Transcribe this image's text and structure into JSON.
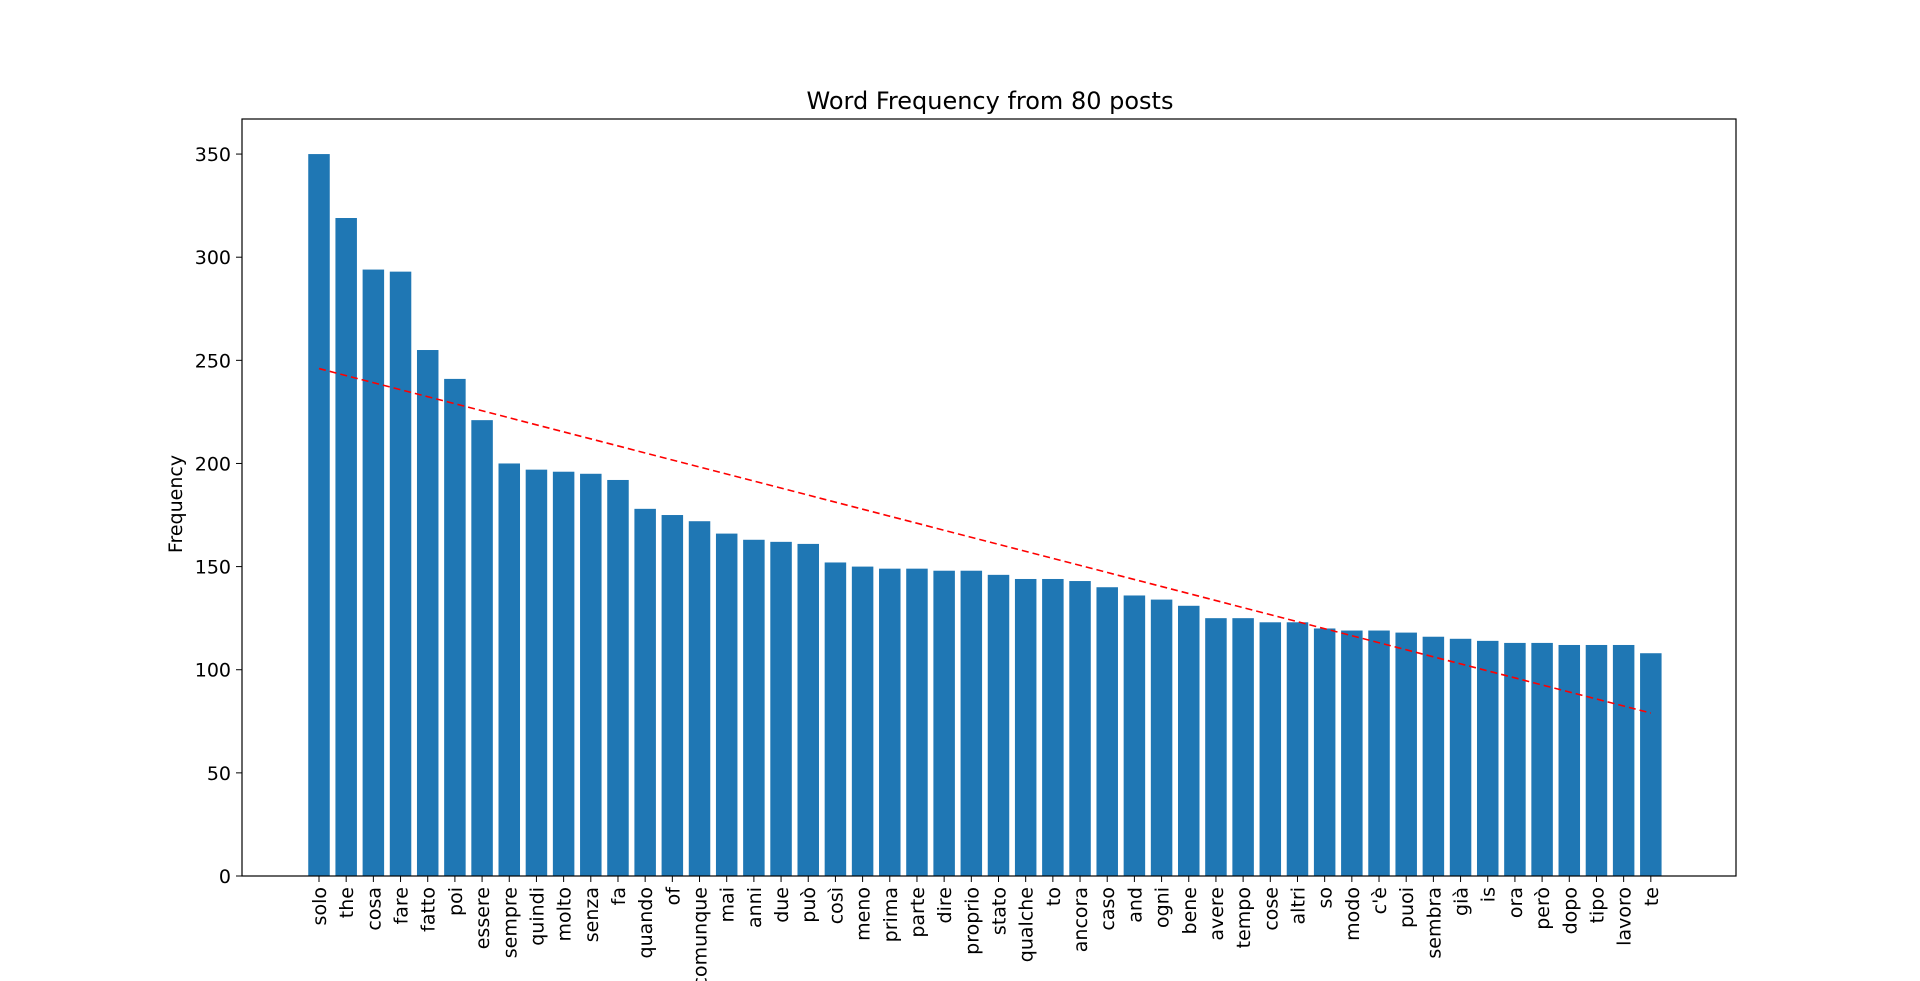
{
  "chart_data": {
    "type": "bar",
    "title": "Word Frequency from 80 posts",
    "xlabel": "",
    "ylabel": "Frequency",
    "ylim": [
      0,
      367
    ],
    "yticks": [
      0,
      50,
      100,
      150,
      200,
      250,
      300,
      350
    ],
    "grid": false,
    "bar_color": "#1f77b4",
    "trend_color": "#ff0000",
    "categories": [
      "solo",
      "the",
      "cosa",
      "fare",
      "fatto",
      "poi",
      "essere",
      "sempre",
      "quindi",
      "molto",
      "senza",
      "fa",
      "quando",
      "of",
      "comunque",
      "mai",
      "anni",
      "due",
      "può",
      "così",
      "meno",
      "prima",
      "parte",
      "dire",
      "proprio",
      "stato",
      "qualche",
      "to",
      "ancora",
      "caso",
      "and",
      "ogni",
      "bene",
      "avere",
      "tempo",
      "cose",
      "altri",
      "so",
      "modo",
      "c'è",
      "puoi",
      "sembra",
      "già",
      "is",
      "ora",
      "però",
      "dopo",
      "tipo",
      "lavoro",
      "te"
    ],
    "values": [
      350,
      319,
      294,
      293,
      255,
      241,
      221,
      200,
      197,
      196,
      195,
      192,
      178,
      175,
      172,
      166,
      163,
      162,
      161,
      152,
      150,
      149,
      149,
      148,
      148,
      146,
      144,
      144,
      143,
      140,
      136,
      134,
      131,
      125,
      125,
      123,
      123,
      120,
      119,
      119,
      118,
      116,
      115,
      114,
      113,
      113,
      112,
      112,
      112,
      108
    ],
    "trend_line": {
      "style": "dashed",
      "start": 246,
      "end": 79
    }
  }
}
